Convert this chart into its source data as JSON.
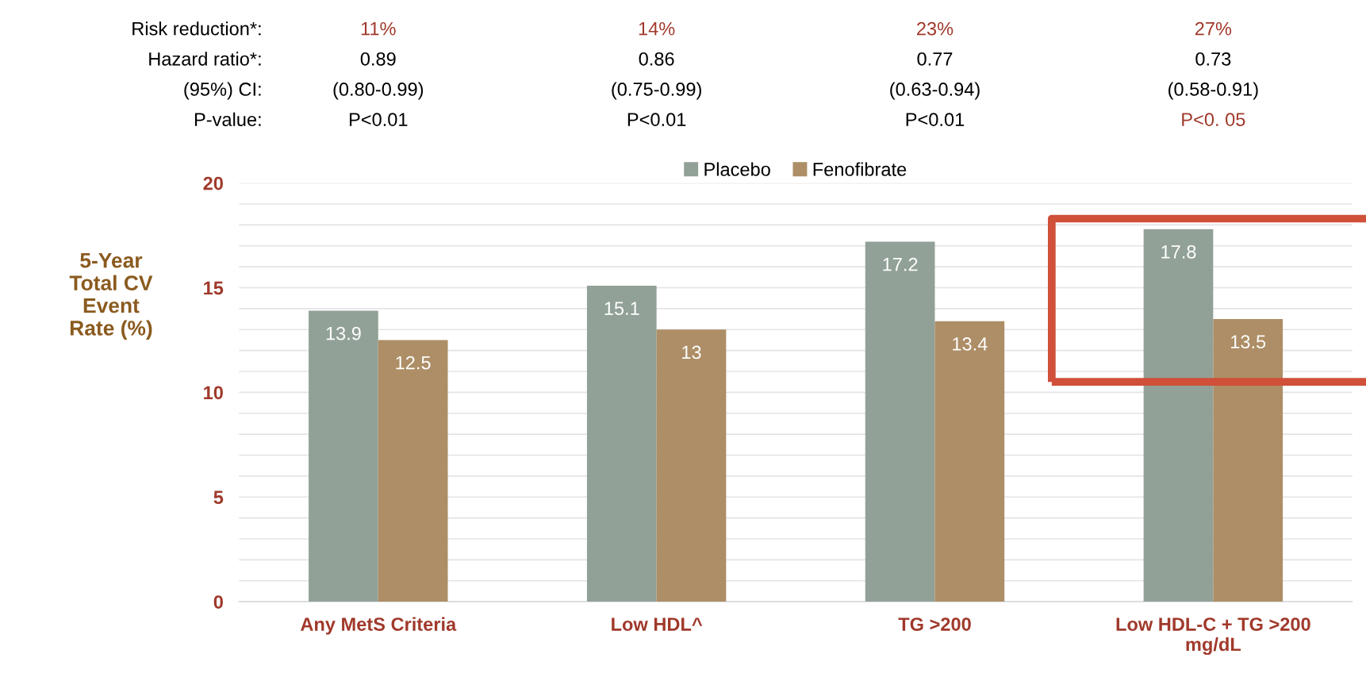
{
  "chart_data": {
    "type": "bar",
    "ylabel": "5-Year\nTotal CV\nEvent\nRate (%)",
    "categories": [
      "Any MetS Criteria",
      "Low HDL^",
      "TG >200",
      "Low HDL-C + TG >200\nmg/dL"
    ],
    "series": [
      {
        "name": "Placebo",
        "color": "#92a197",
        "values": [
          13.9,
          15.1,
          17.2,
          17.8
        ]
      },
      {
        "name": "Fenofibrate",
        "color": "#ad8e66",
        "values": [
          12.5,
          13,
          13.4,
          13.5
        ]
      }
    ],
    "ylim": [
      0,
      20
    ],
    "yticks": [
      0,
      {
        "value": 1,
        "label": null
      },
      {
        "value": 2,
        "label": null
      },
      {
        "value": 3,
        "label": null
      },
      {
        "value": 4,
        "label": null
      },
      5,
      {
        "value": 6,
        "label": null
      },
      {
        "value": 7,
        "label": null
      },
      {
        "value": 8,
        "label": null
      },
      {
        "value": 9,
        "label": null
      },
      10,
      {
        "value": 11,
        "label": null
      },
      {
        "value": 12,
        "label": null
      },
      {
        "value": 13,
        "label": null
      },
      {
        "value": 14,
        "label": null
      },
      15,
      {
        "value": 16,
        "label": null
      },
      {
        "value": 17,
        "label": null
      },
      {
        "value": 18,
        "label": null
      },
      {
        "value": 19,
        "label": null
      },
      20
    ],
    "grid": "y",
    "legend": "top",
    "data_labels": true,
    "annotations": [
      "Risk reduction*:",
      "Hazard ratio*:",
      "(95%) CI:",
      "P-value:",
      "11%",
      "0.89",
      "(0.80-0.99)",
      "P<0.01",
      "14%",
      "0.86",
      "(0.75-0.99)",
      "P<0.01",
      "23%",
      "0.77",
      "(0.63-0.94)",
      "P<0.01",
      "27%",
      "0.73",
      "(0.58-0.91)",
      "P<0. 05"
    ]
  }
}
